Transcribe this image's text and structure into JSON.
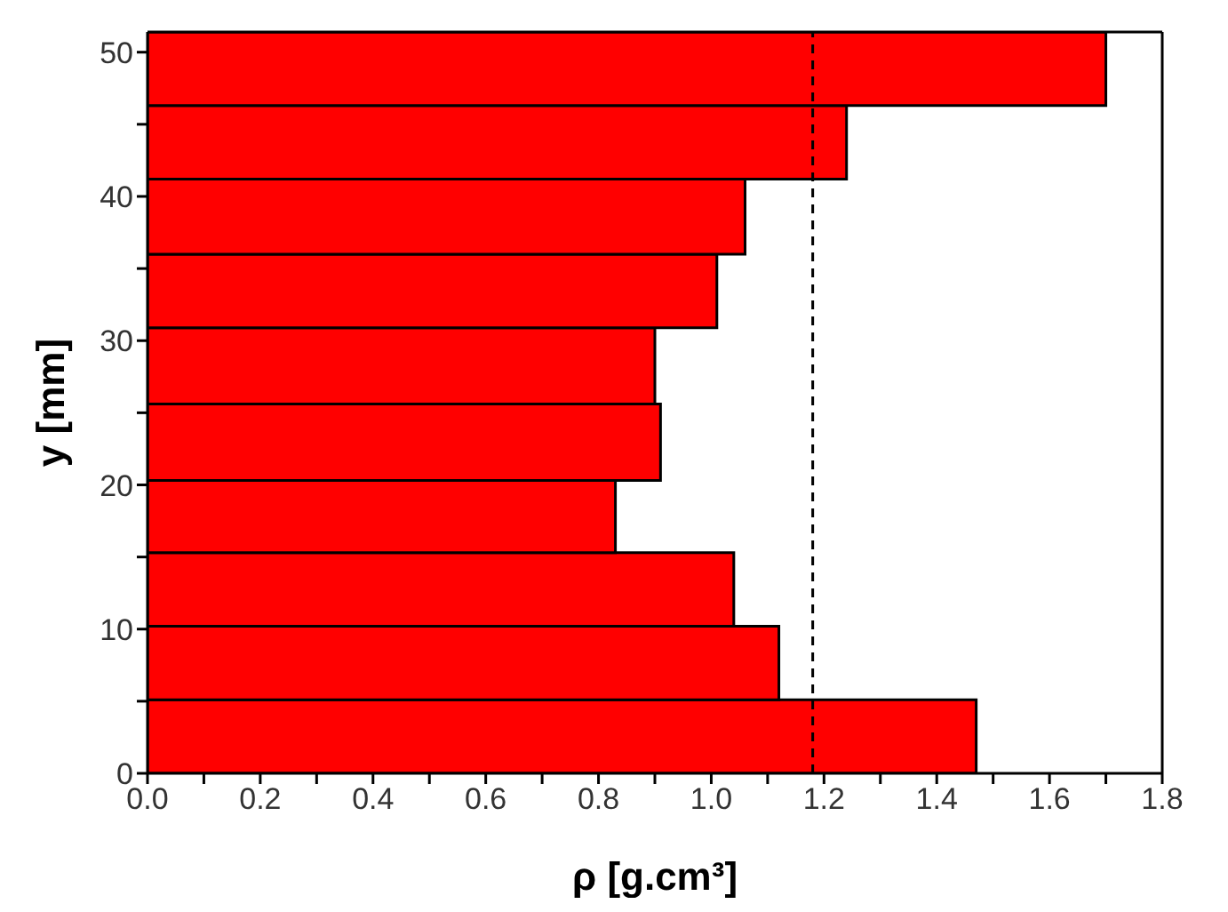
{
  "chart_data": {
    "type": "histogram",
    "orientation": "horizontal",
    "xlabel": "ρ [g.cm³]",
    "ylabel": "y [mm]",
    "bins": [
      0,
      5.1,
      10.2,
      15.3,
      20.3,
      25.6,
      30.9,
      36,
      41.2,
      46.3,
      51.4
    ],
    "values": [
      1.47,
      1.12,
      1.04,
      0.83,
      0.91,
      0.9,
      1.01,
      1.06,
      1.24,
      1.7
    ],
    "color": "#ff0000",
    "xlim": [
      0,
      1.8
    ],
    "xticks": [
      {
        "value": 0,
        "label": "0.0"
      },
      {
        "value": 0.1,
        "label": null
      },
      {
        "value": 0.2,
        "label": "0.2"
      },
      {
        "value": 0.3,
        "label": null
      },
      {
        "value": 0.4,
        "label": "0.4"
      },
      {
        "value": 0.5,
        "label": null
      },
      {
        "value": 0.6,
        "label": "0.6"
      },
      {
        "value": 0.7,
        "label": null
      },
      {
        "value": 0.8,
        "label": "0.8"
      },
      {
        "value": 0.9,
        "label": null
      },
      {
        "value": 1,
        "label": "1.0"
      },
      {
        "value": 1.1,
        "label": null
      },
      {
        "value": 1.2,
        "label": "1.2"
      },
      {
        "value": 1.3,
        "label": null
      },
      {
        "value": 1.4,
        "label": "1.4"
      },
      {
        "value": 1.5,
        "label": null
      },
      {
        "value": 1.6,
        "label": "1.6"
      },
      {
        "value": 1.7,
        "label": null
      },
      {
        "value": 1.8,
        "label": "1.8"
      }
    ],
    "ylim": [
      0,
      51.4
    ],
    "yticks": [
      0,
      {
        "value": 5,
        "label": null
      },
      10,
      {
        "value": 15,
        "label": null
      },
      20,
      {
        "value": 25,
        "label": null
      },
      30,
      {
        "value": 35,
        "label": null
      },
      40,
      {
        "value": 45,
        "label": null
      },
      50
    ],
    "ref_lines": [
      {
        "axis": "x",
        "value": 1.18,
        "color": "#000000",
        "line_style": "dashed"
      }
    ],
    "grid": false
  }
}
